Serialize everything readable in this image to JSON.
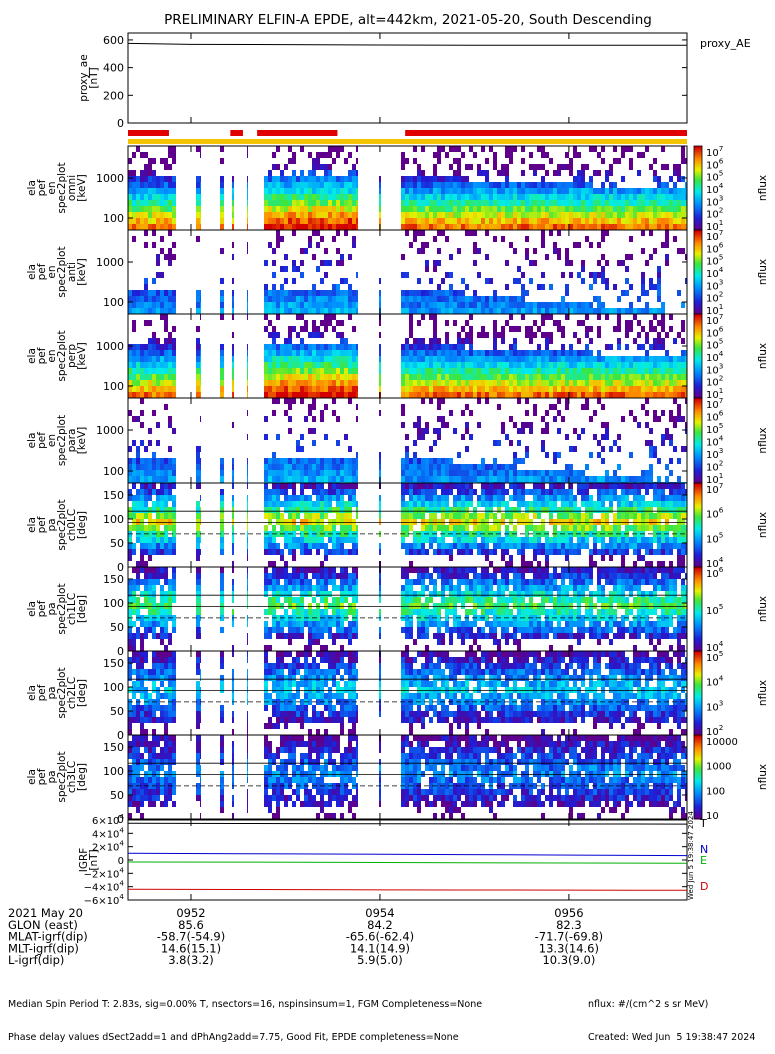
{
  "title": "PRELIMINARY ELFIN-A EPDE, alt=442km, 2021-05-20, South Descending",
  "chart_data": [
    {
      "type": "line",
      "name": "proxy_ae",
      "ylabel_lines": [
        "proxy_ae",
        "[nT]"
      ],
      "yticks": [
        "600",
        "400",
        "200",
        "0"
      ],
      "ylim": [
        0,
        650
      ],
      "legend": "proxy_AE",
      "x": [
        "09:51:20",
        "09:52:00",
        "09:53:00",
        "09:54:00",
        "09:55:00",
        "09:56:00",
        "09:57:15"
      ],
      "values": [
        575,
        568,
        566,
        563,
        562,
        561,
        561
      ]
    },
    {
      "type": "bar",
      "name": "spin-phase-coverage",
      "segments_red": [
        [
          "09:51:20",
          "09:51:46"
        ],
        [
          "09:52:25",
          "09:52:33"
        ],
        [
          "09:52:42",
          "09:53:33"
        ],
        [
          "09:54:16",
          "09:57:15"
        ]
      ],
      "color_red": "#e00000",
      "color_yellow": "#f5c400"
    },
    {
      "type": "heatmap",
      "panels": [
        {
          "ylabel_lines": [
            "ela",
            "pef",
            "en",
            "spec2plot",
            "omni",
            "[keV]"
          ],
          "yticks": [
            "1000",
            "100"
          ],
          "log_y": true,
          "cbar_ticks": [
            "10^7",
            "10^6",
            "10^5",
            "10^4",
            "10^3",
            "10^2",
            "10^1"
          ],
          "cbar_label": "nflux",
          "kind": "energy",
          "level": 1.0
        },
        {
          "ylabel_lines": [
            "ela",
            "pef",
            "en",
            "spec2plot",
            "anti",
            "[keV]"
          ],
          "yticks": [
            "1000",
            "100"
          ],
          "log_y": true,
          "cbar_ticks": [
            "10^7",
            "10^6",
            "10^5",
            "10^4",
            "10^3",
            "10^2",
            "10^1"
          ],
          "cbar_label": "nflux",
          "kind": "energy",
          "level": 0.35
        },
        {
          "ylabel_lines": [
            "ela",
            "pef",
            "en",
            "spec2plot",
            "perp",
            "[keV]"
          ],
          "yticks": [
            "1000",
            "100"
          ],
          "log_y": true,
          "cbar_ticks": [
            "10^7",
            "10^6",
            "10^5",
            "10^4",
            "10^3",
            "10^2",
            "10^1"
          ],
          "cbar_label": "nflux",
          "kind": "energy",
          "level": 1.0
        },
        {
          "ylabel_lines": [
            "ela",
            "pef",
            "en",
            "spec2plot",
            "para",
            "[keV]"
          ],
          "yticks": [
            "1000",
            "100"
          ],
          "log_y": true,
          "cbar_ticks": [
            "10^7",
            "10^6",
            "10^5",
            "10^4",
            "10^3",
            "10^2",
            "10^1"
          ],
          "cbar_label": "nflux",
          "kind": "energy",
          "level": 0.35
        },
        {
          "ylabel_lines": [
            "ela",
            "pef",
            "pa",
            "spec2plot",
            "ch0LC",
            "[deg]"
          ],
          "yticks": [
            "150",
            "100",
            "50",
            "0"
          ],
          "log_y": false,
          "cbar_ticks": [
            "10^7",
            "10^6",
            "10^5",
            "10^4"
          ],
          "cbar_label": "nflux",
          "kind": "pitch",
          "level": 1.0
        },
        {
          "ylabel_lines": [
            "ela",
            "pef",
            "pa",
            "spec2plot",
            "ch1LC",
            "[deg]"
          ],
          "yticks": [
            "150",
            "100",
            "50",
            "0"
          ],
          "log_y": false,
          "cbar_ticks": [
            "10^6",
            "10^5",
            "10^4"
          ],
          "cbar_label": "nflux",
          "kind": "pitch",
          "level": 0.8
        },
        {
          "ylabel_lines": [
            "ela",
            "pef",
            "pa",
            "spec2plot",
            "ch2LC",
            "[deg]"
          ],
          "yticks": [
            "150",
            "100",
            "50",
            "0"
          ],
          "log_y": false,
          "cbar_ticks": [
            "10^5",
            "10^4",
            "10^3",
            "10^2"
          ],
          "cbar_label": "nflux",
          "kind": "pitch",
          "level": 0.55
        },
        {
          "ylabel_lines": [
            "ela",
            "pef",
            "pa",
            "spec2plot",
            "ch3LC",
            "[deg]"
          ],
          "yticks": [
            "150",
            "100",
            "50",
            "0"
          ],
          "log_y": false,
          "cbar_ticks": [
            "10000",
            "1000",
            "100",
            "10"
          ],
          "cbar_label": "nflux",
          "kind": "pitch",
          "level": 0.4
        }
      ]
    },
    {
      "type": "line",
      "name": "IGRF",
      "ylabel_lines": [
        "IGRF",
        "[nT]"
      ],
      "yticks": [
        "6×10^4",
        "4×10^4",
        "2×10^4",
        "0",
        "−2×10^4",
        "−4×10^4",
        "−6×10^4"
      ],
      "ylim": [
        -60000,
        60000
      ],
      "series": [
        {
          "name": "T",
          "color": "#000000",
          "values": [
            55000,
            54800,
            54500,
            54200,
            54000,
            53800
          ]
        },
        {
          "name": "N",
          "color": "#0000d0",
          "values": [
            10000,
            9400,
            8800,
            8100,
            7400,
            6600
          ]
        },
        {
          "name": "E",
          "color": "#00b000",
          "values": [
            -3000,
            -3200,
            -3600,
            -4000,
            -4500,
            -5000
          ]
        },
        {
          "name": "D",
          "color": "#d00000",
          "values": [
            -44000,
            -44300,
            -44700,
            -45000,
            -45200,
            -45400
          ]
        }
      ]
    }
  ],
  "time_axis": {
    "labels": [
      "0952",
      "0954",
      "0956"
    ],
    "rows": [
      {
        "label": "2021 May 20",
        "values": [
          "0952",
          "0954",
          "0956"
        ]
      },
      {
        "label": "GLON (east)",
        "values": [
          "85.6",
          "84.2",
          "82.3"
        ]
      },
      {
        "label": "MLAT-igrf(dip)",
        "values": [
          "-58.7(-54.9)",
          "-65.6(-62.4)",
          "-71.7(-69.8)"
        ]
      },
      {
        "label": "MLT-igrf(dip)",
        "values": [
          "14.6(15.1)",
          "14.1(14.9)",
          "13.3(14.6)"
        ]
      },
      {
        "label": "L-igrf(dip)",
        "values": [
          "3.8(3.2)",
          "5.9(5.0)",
          "10.3(9.0)"
        ]
      }
    ]
  },
  "footer": {
    "line1": "Median Spin Period T: 2.83s, sig=0.00% T, nsectors=16, nspinsinsum=1, FGM Completeness=None",
    "line2": "Phase delay values dSect2add=1 and dPhAng2add=7.75, Good Fit, EPDE completeness=None",
    "right1": "nflux: #/(cm^2 s sr MeV)",
    "right2": "Created: Wed Jun  5 19:38:47 2024"
  },
  "side_note": "Wed Jun  5 19:38:47 2024",
  "colors": {
    "axis": "#000000",
    "background": "#ffffff"
  }
}
